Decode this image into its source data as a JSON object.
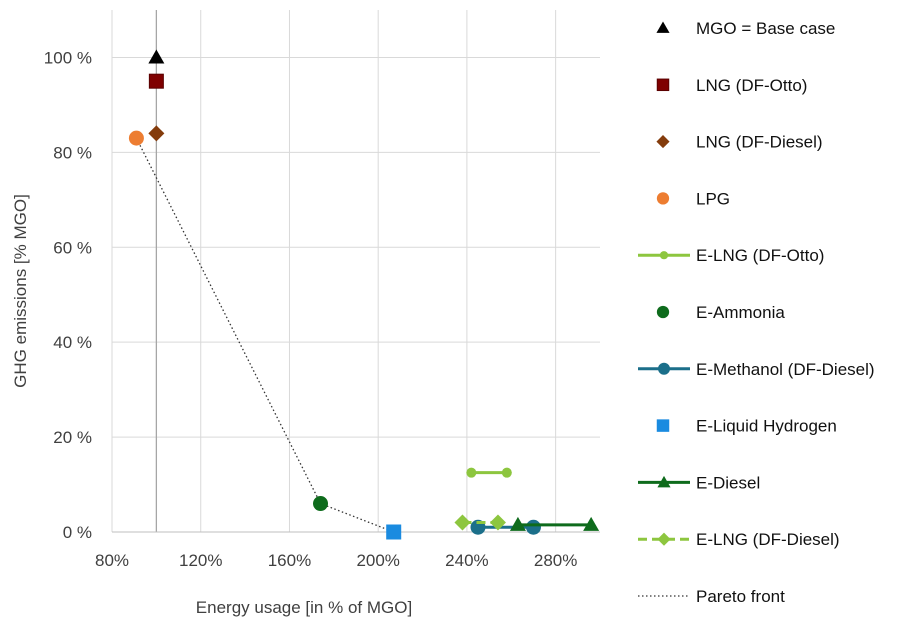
{
  "chart_data": {
    "type": "scatter",
    "xlabel": "Energy usage [in % of MGO]",
    "ylabel": "GHG emissions [% MGO]",
    "xlim": [
      80,
      300
    ],
    "ylim": [
      0,
      110
    ],
    "x_ticks": [
      80,
      120,
      160,
      200,
      240,
      280
    ],
    "x_tick_labels": [
      "80%",
      "120%",
      "160%",
      "200%",
      "240%",
      "280%"
    ],
    "y_ticks": [
      0,
      20,
      40,
      60,
      80,
      100
    ],
    "y_tick_labels": [
      "0 %",
      "20 %",
      "40 %",
      "60 %",
      "80 %",
      "100 %"
    ],
    "grid": "vertical and horizontal major gridlines",
    "legend_position": "right",
    "series": [
      {
        "name": "MGO = Base case",
        "marker": "triangle",
        "color": "#000000",
        "line": false,
        "points": [
          {
            "x": 100,
            "y": 100
          }
        ]
      },
      {
        "name": "LNG (DF-Otto)",
        "marker": "square",
        "color": "#7f0000",
        "line": false,
        "points": [
          {
            "x": 100,
            "y": 95
          }
        ]
      },
      {
        "name": "LNG (DF-Diesel)",
        "marker": "diamond",
        "color": "#843c0c",
        "line": false,
        "points": [
          {
            "x": 100,
            "y": 84
          }
        ]
      },
      {
        "name": "LPG",
        "marker": "circle",
        "color": "#ed7d31",
        "line": false,
        "points": [
          {
            "x": 91,
            "y": 83
          }
        ]
      },
      {
        "name": "E-LNG (DF-Otto)",
        "marker": "circle-small",
        "color": "#8dc63f",
        "line": true,
        "points": [
          {
            "x": 242,
            "y": 12.5
          },
          {
            "x": 258,
            "y": 12.5
          }
        ]
      },
      {
        "name": "E-Ammonia",
        "marker": "circle",
        "color": "#0e6b1c",
        "line": false,
        "points": [
          {
            "x": 174,
            "y": 6
          }
        ]
      },
      {
        "name": "E-Methanol (DF-Diesel)",
        "marker": "circle",
        "color": "#1b6f8a",
        "line": true,
        "points": [
          {
            "x": 245,
            "y": 1
          },
          {
            "x": 270,
            "y": 1
          }
        ]
      },
      {
        "name": "E-Liquid Hydrogen",
        "marker": "square",
        "color": "#1a8be0",
        "line": false,
        "points": [
          {
            "x": 207,
            "y": 0
          }
        ]
      },
      {
        "name": "E-Diesel",
        "marker": "triangle",
        "color": "#0e6b1c",
        "line": true,
        "points": [
          {
            "x": 263,
            "y": 1.5
          },
          {
            "x": 296,
            "y": 1.5
          }
        ]
      },
      {
        "name": "E-LNG (DF-Diesel)",
        "marker": "diamond",
        "color": "#8dc63f",
        "line": true,
        "dashed": true,
        "points": [
          {
            "x": 238,
            "y": 2
          },
          {
            "x": 254,
            "y": 2
          }
        ]
      },
      {
        "name": "Pareto front",
        "marker": "none",
        "color": "#333333",
        "line": true,
        "dotted": true,
        "points": [
          {
            "x": 91,
            "y": 83
          },
          {
            "x": 174,
            "y": 6
          },
          {
            "x": 207,
            "y": 0
          }
        ]
      }
    ]
  }
}
